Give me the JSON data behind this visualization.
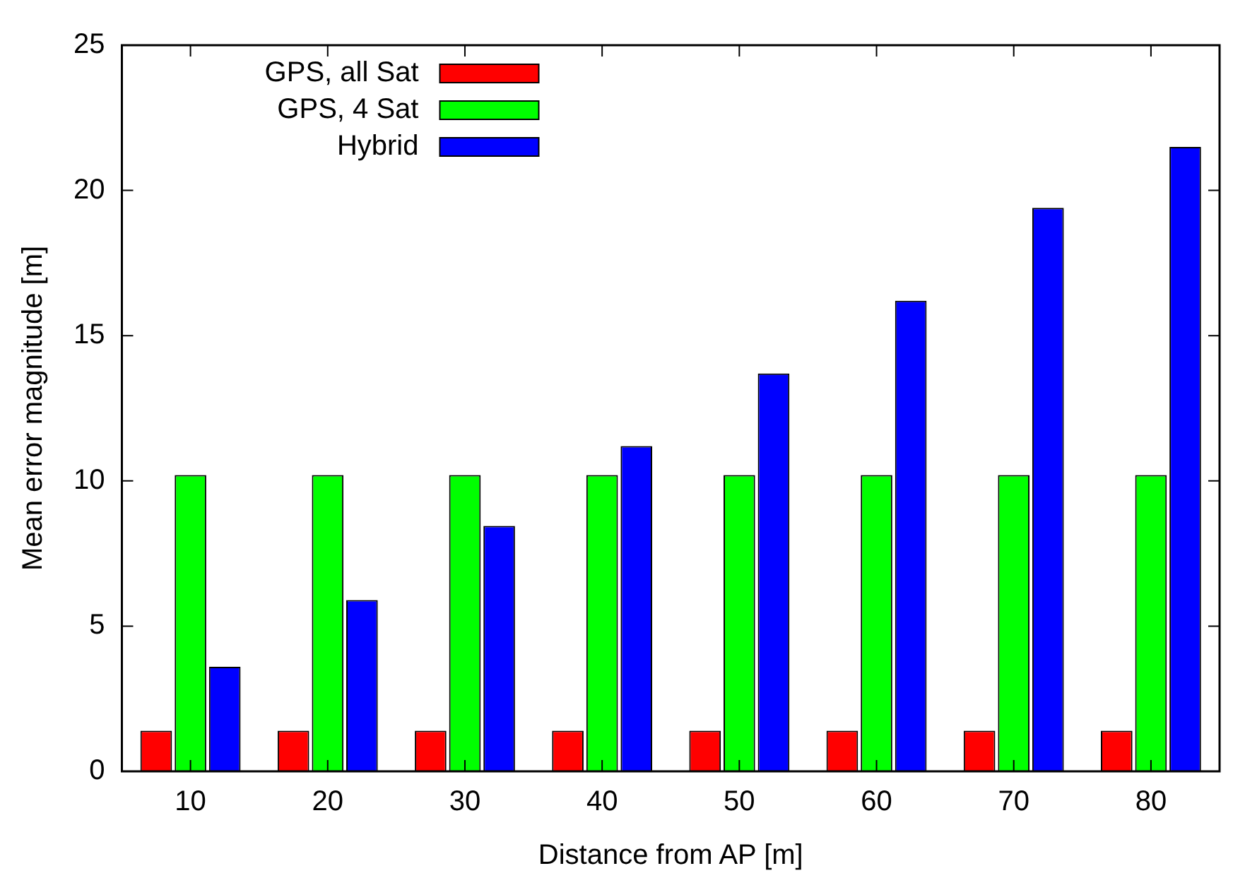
{
  "chart_data": {
    "type": "bar",
    "xlabel": "Distance from AP [m]",
    "ylabel": "Mean error magnitude [m]",
    "categories": [
      "10",
      "20",
      "30",
      "40",
      "50",
      "60",
      "70",
      "80"
    ],
    "series": [
      {
        "name": "GPS, all Sat",
        "color": "#ff0000",
        "values": [
          1.4,
          1.4,
          1.4,
          1.4,
          1.4,
          1.4,
          1.4,
          1.4
        ]
      },
      {
        "name": "GPS, 4 Sat",
        "color": "#00ff00",
        "values": [
          10.2,
          10.2,
          10.2,
          10.2,
          10.2,
          10.2,
          10.2,
          10.2
        ]
      },
      {
        "name": "Hybrid",
        "color": "#0000ff",
        "values": [
          3.6,
          5.9,
          8.45,
          11.2,
          13.7,
          16.2,
          19.4,
          21.5
        ]
      }
    ],
    "ylim": [
      0,
      25
    ],
    "yticks": [
      0,
      5,
      10,
      15,
      20,
      25
    ],
    "grid": false,
    "legend": "top left"
  }
}
